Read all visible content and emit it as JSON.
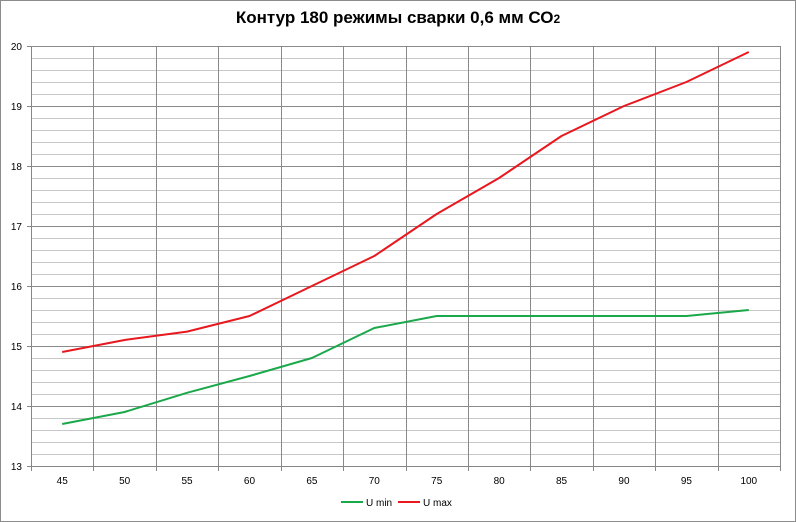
{
  "chart_data": {
    "type": "line",
    "title": "Контур 180 режимы сварки  0,6 мм СО",
    "title_subscript": "2",
    "xlabel": "",
    "ylabel": "",
    "x": [
      45,
      50,
      55,
      60,
      65,
      70,
      75,
      80,
      85,
      90,
      95,
      100
    ],
    "ylim": [
      13,
      20
    ],
    "yticks": [
      13,
      14,
      15,
      16,
      17,
      18,
      19,
      20
    ],
    "grid": true,
    "legend_position": "bottom",
    "series": [
      {
        "name": "U min",
        "color": "#1aa84a",
        "values": [
          13.7,
          13.9,
          14.22,
          14.5,
          14.8,
          15.3,
          15.5,
          15.5,
          15.5,
          15.5,
          15.5,
          15.6
        ]
      },
      {
        "name": "U max",
        "color": "#e8181e",
        "values": [
          14.9,
          15.1,
          15.24,
          15.5,
          16.0,
          16.5,
          17.2,
          17.8,
          18.5,
          19.0,
          19.4,
          19.9
        ]
      }
    ]
  }
}
